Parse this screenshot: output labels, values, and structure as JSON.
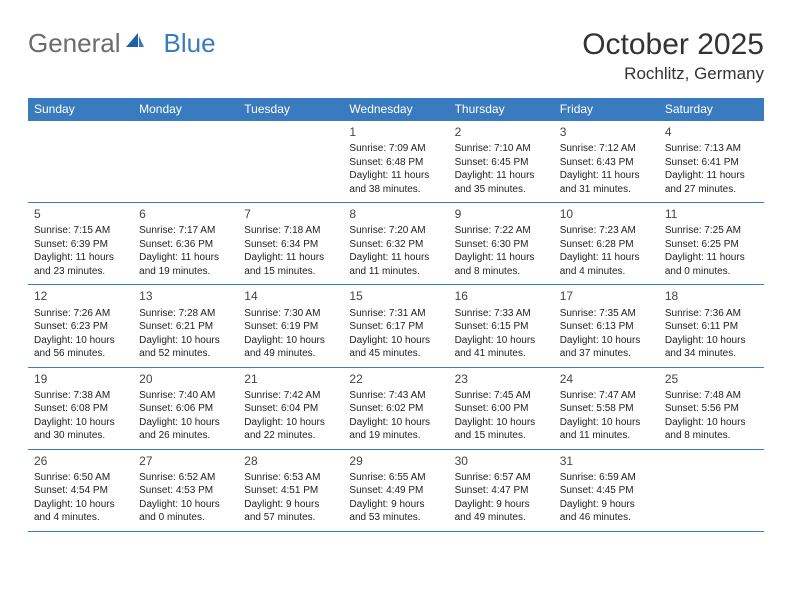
{
  "brand": {
    "part1": "General",
    "part2": "Blue"
  },
  "title": "October 2025",
  "location": "Rochlitz, Germany",
  "colors": {
    "header_bg": "#3a7bbf",
    "header_fg": "#ffffff",
    "border": "#3a7bbf",
    "text": "#222222",
    "title_color": "#333333",
    "logo_gray": "#6b6b6b",
    "logo_blue": "#3a7bbf",
    "background": "#ffffff"
  },
  "columns": [
    "Sunday",
    "Monday",
    "Tuesday",
    "Wednesday",
    "Thursday",
    "Friday",
    "Saturday"
  ],
  "weeks": [
    [
      null,
      null,
      null,
      {
        "n": "1",
        "sr": "Sunrise: 7:09 AM",
        "ss": "Sunset: 6:48 PM",
        "dl": "Daylight: 11 hours and 38 minutes."
      },
      {
        "n": "2",
        "sr": "Sunrise: 7:10 AM",
        "ss": "Sunset: 6:45 PM",
        "dl": "Daylight: 11 hours and 35 minutes."
      },
      {
        "n": "3",
        "sr": "Sunrise: 7:12 AM",
        "ss": "Sunset: 6:43 PM",
        "dl": "Daylight: 11 hours and 31 minutes."
      },
      {
        "n": "4",
        "sr": "Sunrise: 7:13 AM",
        "ss": "Sunset: 6:41 PM",
        "dl": "Daylight: 11 hours and 27 minutes."
      }
    ],
    [
      {
        "n": "5",
        "sr": "Sunrise: 7:15 AM",
        "ss": "Sunset: 6:39 PM",
        "dl": "Daylight: 11 hours and 23 minutes."
      },
      {
        "n": "6",
        "sr": "Sunrise: 7:17 AM",
        "ss": "Sunset: 6:36 PM",
        "dl": "Daylight: 11 hours and 19 minutes."
      },
      {
        "n": "7",
        "sr": "Sunrise: 7:18 AM",
        "ss": "Sunset: 6:34 PM",
        "dl": "Daylight: 11 hours and 15 minutes."
      },
      {
        "n": "8",
        "sr": "Sunrise: 7:20 AM",
        "ss": "Sunset: 6:32 PM",
        "dl": "Daylight: 11 hours and 11 minutes."
      },
      {
        "n": "9",
        "sr": "Sunrise: 7:22 AM",
        "ss": "Sunset: 6:30 PM",
        "dl": "Daylight: 11 hours and 8 minutes."
      },
      {
        "n": "10",
        "sr": "Sunrise: 7:23 AM",
        "ss": "Sunset: 6:28 PM",
        "dl": "Daylight: 11 hours and 4 minutes."
      },
      {
        "n": "11",
        "sr": "Sunrise: 7:25 AM",
        "ss": "Sunset: 6:25 PM",
        "dl": "Daylight: 11 hours and 0 minutes."
      }
    ],
    [
      {
        "n": "12",
        "sr": "Sunrise: 7:26 AM",
        "ss": "Sunset: 6:23 PM",
        "dl": "Daylight: 10 hours and 56 minutes."
      },
      {
        "n": "13",
        "sr": "Sunrise: 7:28 AM",
        "ss": "Sunset: 6:21 PM",
        "dl": "Daylight: 10 hours and 52 minutes."
      },
      {
        "n": "14",
        "sr": "Sunrise: 7:30 AM",
        "ss": "Sunset: 6:19 PM",
        "dl": "Daylight: 10 hours and 49 minutes."
      },
      {
        "n": "15",
        "sr": "Sunrise: 7:31 AM",
        "ss": "Sunset: 6:17 PM",
        "dl": "Daylight: 10 hours and 45 minutes."
      },
      {
        "n": "16",
        "sr": "Sunrise: 7:33 AM",
        "ss": "Sunset: 6:15 PM",
        "dl": "Daylight: 10 hours and 41 minutes."
      },
      {
        "n": "17",
        "sr": "Sunrise: 7:35 AM",
        "ss": "Sunset: 6:13 PM",
        "dl": "Daylight: 10 hours and 37 minutes."
      },
      {
        "n": "18",
        "sr": "Sunrise: 7:36 AM",
        "ss": "Sunset: 6:11 PM",
        "dl": "Daylight: 10 hours and 34 minutes."
      }
    ],
    [
      {
        "n": "19",
        "sr": "Sunrise: 7:38 AM",
        "ss": "Sunset: 6:08 PM",
        "dl": "Daylight: 10 hours and 30 minutes."
      },
      {
        "n": "20",
        "sr": "Sunrise: 7:40 AM",
        "ss": "Sunset: 6:06 PM",
        "dl": "Daylight: 10 hours and 26 minutes."
      },
      {
        "n": "21",
        "sr": "Sunrise: 7:42 AM",
        "ss": "Sunset: 6:04 PM",
        "dl": "Daylight: 10 hours and 22 minutes."
      },
      {
        "n": "22",
        "sr": "Sunrise: 7:43 AM",
        "ss": "Sunset: 6:02 PM",
        "dl": "Daylight: 10 hours and 19 minutes."
      },
      {
        "n": "23",
        "sr": "Sunrise: 7:45 AM",
        "ss": "Sunset: 6:00 PM",
        "dl": "Daylight: 10 hours and 15 minutes."
      },
      {
        "n": "24",
        "sr": "Sunrise: 7:47 AM",
        "ss": "Sunset: 5:58 PM",
        "dl": "Daylight: 10 hours and 11 minutes."
      },
      {
        "n": "25",
        "sr": "Sunrise: 7:48 AM",
        "ss": "Sunset: 5:56 PM",
        "dl": "Daylight: 10 hours and 8 minutes."
      }
    ],
    [
      {
        "n": "26",
        "sr": "Sunrise: 6:50 AM",
        "ss": "Sunset: 4:54 PM",
        "dl": "Daylight: 10 hours and 4 minutes."
      },
      {
        "n": "27",
        "sr": "Sunrise: 6:52 AM",
        "ss": "Sunset: 4:53 PM",
        "dl": "Daylight: 10 hours and 0 minutes."
      },
      {
        "n": "28",
        "sr": "Sunrise: 6:53 AM",
        "ss": "Sunset: 4:51 PM",
        "dl": "Daylight: 9 hours and 57 minutes."
      },
      {
        "n": "29",
        "sr": "Sunrise: 6:55 AM",
        "ss": "Sunset: 4:49 PM",
        "dl": "Daylight: 9 hours and 53 minutes."
      },
      {
        "n": "30",
        "sr": "Sunrise: 6:57 AM",
        "ss": "Sunset: 4:47 PM",
        "dl": "Daylight: 9 hours and 49 minutes."
      },
      {
        "n": "31",
        "sr": "Sunrise: 6:59 AM",
        "ss": "Sunset: 4:45 PM",
        "dl": "Daylight: 9 hours and 46 minutes."
      },
      null
    ]
  ]
}
